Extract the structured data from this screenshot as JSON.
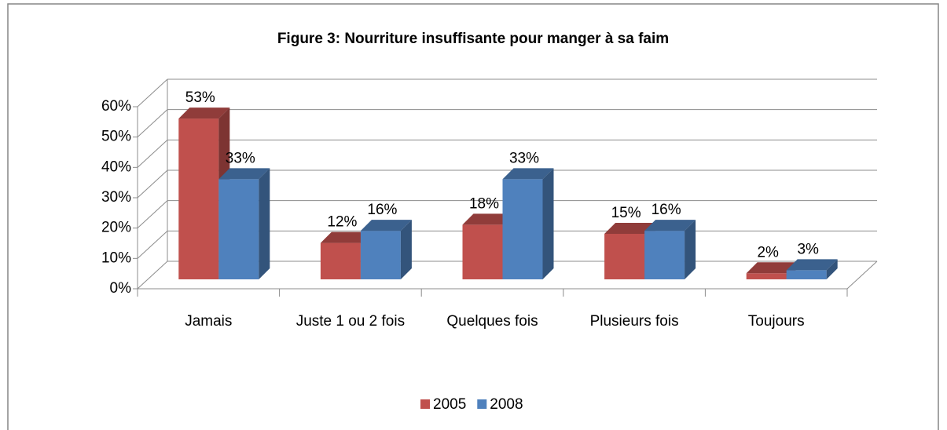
{
  "chart_data": {
    "type": "bar3d",
    "title": "Figure 3: Nourriture insuffisante pour manger à sa faim",
    "categories": [
      "Jamais",
      "Juste 1 ou 2 fois",
      "Quelques fois",
      "Plusieurs fois",
      "Toujours"
    ],
    "series": [
      {
        "name": "2005",
        "color": "#c0504d",
        "values": [
          53,
          12,
          18,
          15,
          2
        ],
        "value_labels": [
          "53%",
          "12%",
          "18%",
          "15%",
          "2%"
        ]
      },
      {
        "name": "2008",
        "color": "#4f81bd",
        "values": [
          33,
          16,
          33,
          16,
          3
        ],
        "value_labels": [
          "33%",
          "16%",
          "33%",
          "16%",
          "3%"
        ]
      }
    ],
    "ylim": [
      0,
      60
    ],
    "yticks": [
      {
        "value": 0,
        "label": "0%"
      },
      {
        "value": 10,
        "label": "10%"
      },
      {
        "value": 20,
        "label": "20%"
      },
      {
        "value": 30,
        "label": "30%"
      },
      {
        "value": 40,
        "label": "40%"
      },
      {
        "value": 50,
        "label": "50%"
      },
      {
        "value": 60,
        "label": "60%"
      }
    ],
    "grid": true,
    "legend": "bottom"
  }
}
